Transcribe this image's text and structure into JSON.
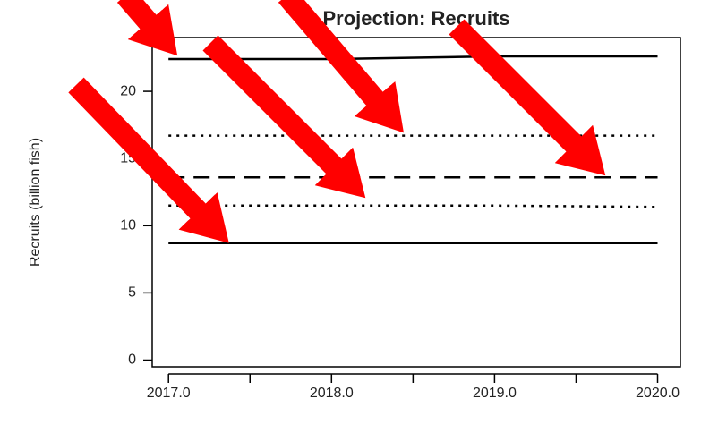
{
  "chart_data": {
    "type": "line",
    "title": "Projection: Recruits",
    "y_label": "Recruits (billion fish)",
    "x": [
      2017,
      2018,
      2019,
      2020
    ],
    "series": [
      {
        "color": "#000000",
        "style": "solid",
        "values": [
          22.4,
          22.4,
          22.6,
          22.6
        ]
      },
      {
        "color": "#000000",
        "style": "dotted",
        "values": [
          16.7,
          16.7,
          16.7,
          16.7
        ]
      },
      {
        "color": "#000000",
        "style": "dashed",
        "values": [
          13.6,
          13.6,
          13.6,
          13.6
        ]
      },
      {
        "color": "#000000",
        "style": "dotted",
        "values": [
          11.5,
          11.5,
          11.5,
          11.4
        ]
      },
      {
        "color": "#000000",
        "style": "solid",
        "values": [
          8.7,
          8.7,
          8.7,
          8.7
        ]
      }
    ],
    "xlim": [
      2016.9,
      2020.14
    ],
    "xticks": [
      {
        "value": 2017,
        "label": "2017.0"
      },
      {
        "value": 2017.5,
        "label": null
      },
      {
        "value": 2018,
        "label": "2018.0"
      },
      {
        "value": 2018.5,
        "label": null
      },
      {
        "value": 2019,
        "label": "2019.0"
      },
      {
        "value": 2019.5,
        "label": null
      },
      {
        "value": 2020,
        "label": "2020.0"
      }
    ],
    "ylim": [
      -0.5,
      24
    ],
    "yticks": [
      0,
      5,
      10,
      15,
      20
    ],
    "grid": false
  }
}
